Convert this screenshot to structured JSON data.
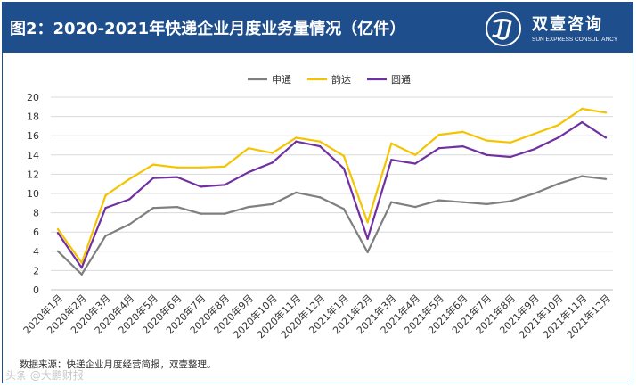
{
  "header": {
    "title": "图2：2020-2021年快递企业月度业务量情况（亿件）",
    "logo_cn": "双壹咨询",
    "logo_en": "SUN EXPRESS CONSULTANCY"
  },
  "source_note": "数据来源：快递企业月度经营简报，双壹整理。",
  "watermark": "头条 @大鹏财报",
  "colors": {
    "header_bg": "#1f4e8c",
    "shentong": "#7f7f7f",
    "yunda": "#f5c400",
    "yuantong": "#7030a0",
    "grid": "#d9d9d9"
  },
  "chart_data": {
    "type": "line",
    "title": "2020-2021年快递企业月度业务量情况（亿件）",
    "ylim": [
      0,
      20
    ],
    "yticks": [
      0,
      2,
      4,
      6,
      8,
      10,
      12,
      14,
      16,
      18,
      20
    ],
    "grid": true,
    "legend_position": "top-center",
    "categories": [
      "2020年1月",
      "2020年2月",
      "2020年3月",
      "2020年4月",
      "2020年5月",
      "2020年6月",
      "2020年7月",
      "2020年8月",
      "2020年9月",
      "2020年10月",
      "2020年11月",
      "2020年12月",
      "2021年1月",
      "2021年2月",
      "2021年3月",
      "2021年4月",
      "2021年5月",
      "2021年6月",
      "2021年7月",
      "2021年8月",
      "2021年9月",
      "2021年10月",
      "2021年11月",
      "2021年12月"
    ],
    "series": [
      {
        "name": "申通",
        "key": "shentong",
        "values": [
          4.0,
          1.6,
          5.6,
          6.8,
          8.5,
          8.6,
          7.9,
          7.9,
          8.6,
          8.9,
          10.1,
          9.6,
          8.4,
          3.9,
          9.1,
          8.6,
          9.3,
          9.1,
          8.9,
          9.2,
          10.0,
          11.0,
          11.8,
          11.5
        ]
      },
      {
        "name": "韵达",
        "key": "yunda",
        "values": [
          6.3,
          2.8,
          9.8,
          11.5,
          13.0,
          12.7,
          12.7,
          12.8,
          14.7,
          14.2,
          15.8,
          15.4,
          13.9,
          7.0,
          15.2,
          14.0,
          16.1,
          16.4,
          15.5,
          15.3,
          16.2,
          17.1,
          18.8,
          18.4
        ]
      },
      {
        "name": "圆通",
        "key": "yuantong",
        "values": [
          5.9,
          2.3,
          8.5,
          9.4,
          11.6,
          11.7,
          10.7,
          10.9,
          12.2,
          13.2,
          15.4,
          14.9,
          12.6,
          5.3,
          13.5,
          13.1,
          14.7,
          14.9,
          14.0,
          13.8,
          14.6,
          15.8,
          17.4,
          15.8
        ]
      }
    ]
  }
}
